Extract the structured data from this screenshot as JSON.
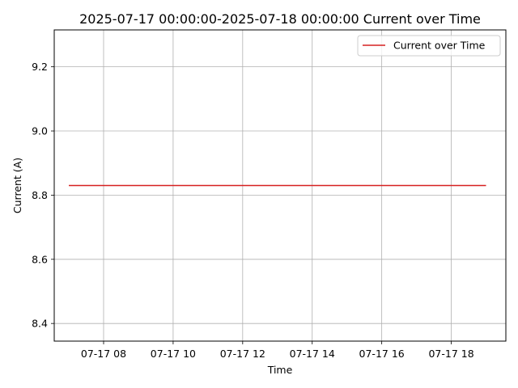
{
  "chart_data": {
    "type": "line",
    "title": "2025-07-17 00:00:00-2025-07-18 00:00:00 Current over Time",
    "xlabel": "Time",
    "ylabel": "Current (A)",
    "x_ticks": [
      {
        "hour": 8,
        "label": "07-17 08"
      },
      {
        "hour": 10,
        "label": "07-17 10"
      },
      {
        "hour": 12,
        "label": "07-17 12"
      },
      {
        "hour": 14,
        "label": "07-17 14"
      },
      {
        "hour": 16,
        "label": "07-17 16"
      },
      {
        "hour": 18,
        "label": "07-17 18"
      }
    ],
    "y_ticks": [
      {
        "value": 8.4,
        "label": "8.4"
      },
      {
        "value": 8.6,
        "label": "8.6"
      },
      {
        "value": 8.8,
        "label": "8.8"
      },
      {
        "value": 9.0,
        "label": "9.0"
      },
      {
        "value": 9.2,
        "label": "9.2"
      }
    ],
    "xlim_hours": [
      6.58,
      19.57
    ],
    "ylim": [
      8.345,
      9.315
    ],
    "grid": true,
    "series": [
      {
        "name": "Current over Time",
        "color": "#d62020",
        "x_hours": [
          7.0,
          19.0
        ],
        "values": [
          8.83,
          8.83
        ]
      }
    ],
    "legend": {
      "position": "top-right",
      "label": "Current over Time"
    }
  }
}
